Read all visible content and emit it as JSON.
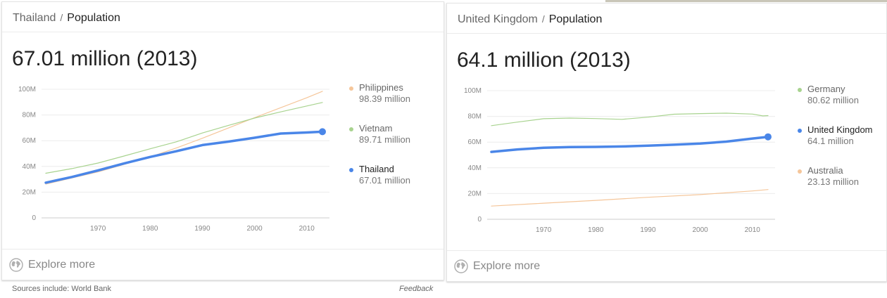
{
  "cards": [
    {
      "breadcrumb": {
        "parent": "Thailand",
        "separator": "/",
        "current": "Population"
      },
      "headline": "67.01 million (2013)",
      "explore_label": "Explore more",
      "legend": [
        {
          "name": "Philippines",
          "value": "98.39 million",
          "color": "#f5c69a",
          "active": false
        },
        {
          "name": "Vietnam",
          "value": "89.71 million",
          "color": "#a8d38f",
          "active": false
        },
        {
          "name": "Thailand",
          "value": "67.01 million",
          "color": "#4a86e8",
          "active": true
        }
      ]
    },
    {
      "breadcrumb": {
        "parent": "United Kingdom",
        "separator": "/",
        "current": "Population"
      },
      "headline": "64.1 million (2013)",
      "explore_label": "Explore more",
      "legend": [
        {
          "name": "Germany",
          "value": "80.62 million",
          "color": "#a8d38f",
          "active": false
        },
        {
          "name": "United Kingdom",
          "value": "64.1 million",
          "color": "#4a86e8",
          "active": true
        },
        {
          "name": "Australia",
          "value": "23.13 million",
          "color": "#f5c69a",
          "active": false
        }
      ]
    }
  ],
  "footer": {
    "sources": "Sources include: World Bank",
    "feedback": "Feedback"
  },
  "chart_data": [
    {
      "type": "line",
      "title": "",
      "xlabel": "",
      "ylabel": "",
      "xlim": [
        1960,
        2013
      ],
      "ylim": [
        0,
        100
      ],
      "yticks": [
        "0",
        "20M",
        "40M",
        "60M",
        "80M",
        "100M"
      ],
      "xticks": [
        "1970",
        "1980",
        "1990",
        "2000",
        "2010"
      ],
      "grid": true,
      "legend_position": "right",
      "unit": "million",
      "series": [
        {
          "name": "Philippines",
          "color": "#f5c69a",
          "x": [
            1960,
            1970,
            1980,
            1985,
            1990,
            2000,
            2010,
            2013
          ],
          "values": [
            26.3,
            35.8,
            47.4,
            54.3,
            61.9,
            77.9,
            93.4,
            98.4
          ]
        },
        {
          "name": "Vietnam",
          "color": "#a8d38f",
          "x": [
            1960,
            1965,
            1970,
            1975,
            1980,
            1985,
            1990,
            1995,
            2000,
            2005,
            2010,
            2013
          ],
          "values": [
            34.7,
            38.3,
            42.6,
            48.1,
            53.7,
            59.1,
            66.0,
            71.9,
            77.6,
            82.4,
            87.0,
            89.7
          ]
        },
        {
          "name": "Thailand",
          "color": "#4a86e8",
          "x": [
            1960,
            1965,
            1970,
            1975,
            1980,
            1985,
            1990,
            1995,
            2000,
            2005,
            2010,
            2013
          ],
          "values": [
            27.4,
            31.8,
            36.9,
            42.3,
            47.4,
            51.8,
            56.6,
            59.3,
            62.3,
            65.6,
            66.4,
            67.0
          ]
        }
      ]
    },
    {
      "type": "line",
      "title": "",
      "xlabel": "",
      "ylabel": "",
      "xlim": [
        1960,
        2013
      ],
      "ylim": [
        0,
        100
      ],
      "yticks": [
        "0",
        "20M",
        "40M",
        "60M",
        "80M",
        "100M"
      ],
      "xticks": [
        "1970",
        "1980",
        "1990",
        "2000",
        "2010"
      ],
      "grid": true,
      "legend_position": "right",
      "unit": "million",
      "series": [
        {
          "name": "Germany",
          "color": "#a8d38f",
          "x": [
            1960,
            1965,
            1970,
            1975,
            1980,
            1985,
            1990,
            1995,
            2000,
            2005,
            2010,
            2012,
            2013
          ],
          "values": [
            72.8,
            75.6,
            78.2,
            78.7,
            78.3,
            77.7,
            79.4,
            81.7,
            82.2,
            82.5,
            81.8,
            80.4,
            80.6
          ]
        },
        {
          "name": "United Kingdom",
          "color": "#4a86e8",
          "x": [
            1960,
            1965,
            1970,
            1975,
            1980,
            1985,
            1990,
            1995,
            2000,
            2005,
            2010,
            2013
          ],
          "values": [
            52.4,
            54.3,
            55.6,
            56.2,
            56.3,
            56.6,
            57.2,
            58.0,
            58.9,
            60.4,
            62.8,
            64.1
          ]
        },
        {
          "name": "Australia",
          "color": "#f5c69a",
          "x": [
            1960,
            1970,
            1980,
            1990,
            2000,
            2010,
            2013
          ],
          "values": [
            10.3,
            12.5,
            14.7,
            17.1,
            19.2,
            22.0,
            23.1
          ]
        }
      ]
    }
  ]
}
